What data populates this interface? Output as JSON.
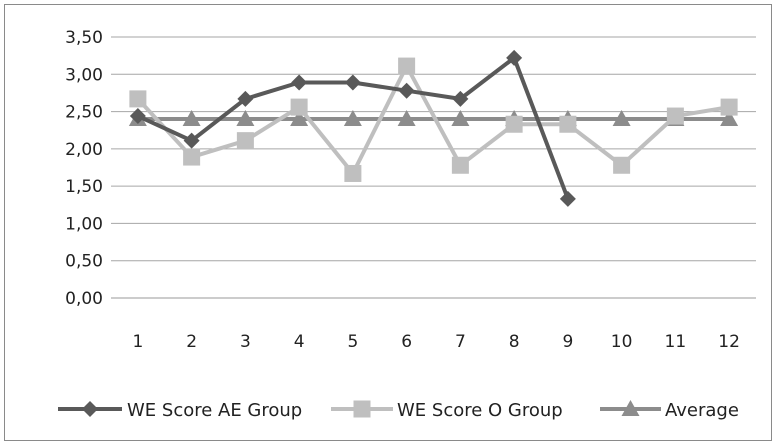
{
  "chart_data": {
    "type": "line",
    "title": "",
    "xlabel": "",
    "ylabel": "",
    "categories": [
      "1",
      "2",
      "3",
      "4",
      "5",
      "6",
      "7",
      "8",
      "9",
      "10",
      "11",
      "12"
    ],
    "ylim": [
      0,
      3.5
    ],
    "yticks": [
      "0,00",
      "0,50",
      "1,00",
      "1,50",
      "2,00",
      "2,50",
      "3,00",
      "3,50"
    ],
    "grid": "horizontal",
    "legend": "bottom",
    "series": [
      {
        "name": "WE Score AE Group",
        "marker": "diamond",
        "color": "#595959",
        "values": [
          2.44,
          2.11,
          2.67,
          2.89,
          2.89,
          2.78,
          2.67,
          3.22,
          1.33,
          null,
          null,
          null
        ]
      },
      {
        "name": "WE Score O Group",
        "marker": "square",
        "color": "#bfbfbf",
        "values": [
          2.67,
          1.89,
          2.11,
          2.56,
          1.67,
          3.11,
          1.78,
          2.33,
          2.33,
          1.78,
          2.44,
          2.56
        ]
      },
      {
        "name": "Average",
        "marker": "triangle",
        "color": "#8c8c8c",
        "values": [
          2.4,
          2.4,
          2.4,
          2.4,
          2.4,
          2.4,
          2.4,
          2.4,
          2.4,
          2.4,
          2.4,
          2.4
        ]
      }
    ]
  }
}
